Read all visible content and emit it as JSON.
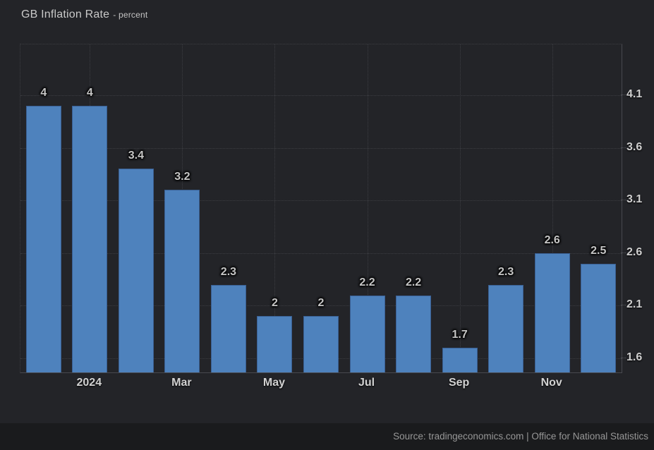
{
  "header": {
    "title": "GB Inflation Rate",
    "subtitle": "- percent"
  },
  "footer": {
    "source": "Source: tradingeconomics.com | Office for National Statistics"
  },
  "chart_data": {
    "type": "bar",
    "title": "GB Inflation Rate - percent",
    "ylabel": "percent",
    "values": [
      4,
      4,
      3.4,
      3.2,
      2.3,
      2,
      2,
      2.2,
      2.2,
      1.7,
      2.3,
      2.6,
      2.5
    ],
    "bar_labels": [
      "4",
      "4",
      "3.4",
      "3.2",
      "2.3",
      "2",
      "2",
      "2.2",
      "2.2",
      "1.7",
      "2.3",
      "2.6",
      "2.5"
    ],
    "x_ticks": [
      {
        "label": "2024",
        "bar_index": 1
      },
      {
        "label": "Mar",
        "bar_index": 3
      },
      {
        "label": "May",
        "bar_index": 5
      },
      {
        "label": "Jul",
        "bar_index": 7
      },
      {
        "label": "Sep",
        "bar_index": 9
      },
      {
        "label": "Nov",
        "bar_index": 11
      }
    ],
    "y_ticks": [
      "4.1",
      "3.6",
      "3.1",
      "2.6",
      "2.1",
      "1.6"
    ],
    "ylim": [
      1.466,
      4.583
    ],
    "grid": "dotted",
    "legend": false,
    "colors": {
      "background": "#232428",
      "footer_background": "#1a1b1d",
      "bar": "#4e82bd",
      "bar_border": "#3a5f92",
      "grid": "#3c3d42",
      "axis": "#48494f",
      "value_label": "#c6c6c6",
      "tick_label": "#cfcfcf"
    }
  }
}
